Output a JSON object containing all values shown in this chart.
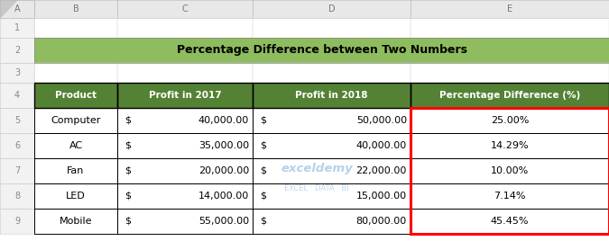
{
  "title": "Percentage Difference between Two Numbers",
  "title_bg": "#8fbc5e",
  "header_bg": "#548235",
  "header_text_color": "#ffffff",
  "red_border_color": "#ff0000",
  "col_headers": [
    "Product",
    "Profit in 2017",
    "Profit in 2018",
    "Percentage Difference (%)"
  ],
  "products": [
    "Computer",
    "AC",
    "Fan",
    "LED",
    "Mobile"
  ],
  "profit_2017": [
    "40,000.00",
    "35,000.00",
    "20,000.00",
    "14,000.00",
    "55,000.00"
  ],
  "profit_2018": [
    "50,000.00",
    "40,000.00",
    "22,000.00",
    "15,000.00",
    "80,000.00"
  ],
  "pct_diff": [
    "25.00%",
    "14.29%",
    "10.00%",
    "7.14%",
    "45.45%"
  ],
  "excel_col_labels": [
    "A",
    "B",
    "C",
    "D",
    "E"
  ],
  "excel_row_labels": [
    "1",
    "2",
    "3",
    "4",
    "5",
    "6",
    "7",
    "8",
    "9"
  ],
  "figsize": [
    6.75,
    2.68
  ],
  "dpi": 100,
  "col_header_bg": "#e8e8e8",
  "col_header_text": "#777777",
  "row_num_bg": "#f2f2f2",
  "row_num_text": "#888888",
  "watermark_text": "exceldemy",
  "watermark_sub": "EXCEL · DATA · BI",
  "watermark_color": "#5b9bd5",
  "cell_border": "#999999",
  "table_border": "#2e7510"
}
